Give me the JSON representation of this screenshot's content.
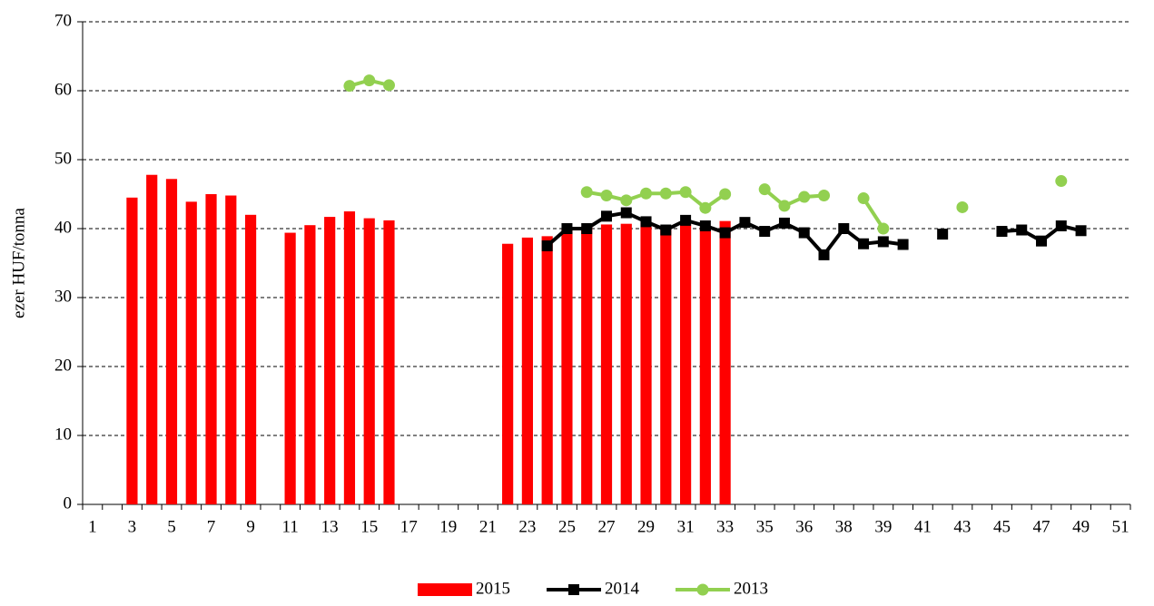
{
  "chart_data": {
    "type": "bar_line",
    "y_label": "ezer HUF/tonna",
    "categories": [
      "1",
      null,
      "3",
      null,
      "5",
      null,
      "7",
      null,
      "9",
      null,
      "11",
      null,
      "13",
      null,
      "15",
      null,
      "17",
      null,
      "19",
      null,
      "21",
      null,
      "23",
      null,
      "25",
      null,
      "27",
      null,
      "29",
      null,
      "31",
      null,
      "33",
      null,
      "35",
      null,
      "36",
      null,
      "38",
      null,
      "39",
      null,
      "41",
      null,
      "43",
      null,
      "45",
      null,
      "47",
      null,
      "49",
      null,
      "51"
    ],
    "series": [
      {
        "name": "2015",
        "type": "bar",
        "color": "#ff0000",
        "values": [
          null,
          null,
          44.5,
          47.8,
          47.2,
          43.9,
          45,
          44.8,
          42,
          null,
          39.4,
          40.5,
          41.7,
          42.5,
          41.5,
          41.2,
          null,
          null,
          null,
          null,
          null,
          37.8,
          38.7,
          38.9,
          40,
          40.3,
          40.6,
          40.7,
          41,
          40,
          40.8,
          40.2,
          41.1,
          null,
          null,
          null,
          null,
          null,
          null,
          null,
          null,
          null,
          null,
          null,
          null,
          null,
          null,
          null,
          null,
          null,
          null,
          null,
          null
        ]
      },
      {
        "name": "2014",
        "type": "line",
        "marker": "square",
        "color": "#000000",
        "values": [
          null,
          null,
          null,
          null,
          null,
          null,
          null,
          null,
          null,
          null,
          null,
          null,
          null,
          null,
          null,
          null,
          null,
          null,
          null,
          null,
          null,
          null,
          null,
          37.5,
          40,
          40,
          41.8,
          42.3,
          41,
          39.8,
          41.2,
          40.4,
          39.4,
          40.9,
          39.6,
          40.8,
          39.4,
          36.2,
          40,
          37.8,
          38.1,
          37.7,
          null,
          39.2,
          null,
          null,
          39.6,
          39.8,
          38.2,
          40.4,
          39.7,
          null,
          null
        ]
      },
      {
        "name": "2013",
        "type": "line",
        "marker": "circle",
        "color": "#92d050",
        "values": [
          null,
          null,
          null,
          null,
          null,
          null,
          null,
          null,
          null,
          null,
          null,
          null,
          null,
          60.7,
          61.5,
          60.8,
          null,
          null,
          null,
          null,
          null,
          null,
          null,
          null,
          null,
          45.3,
          44.8,
          44.1,
          45.1,
          45.1,
          45.3,
          43,
          45,
          null,
          45.7,
          43.3,
          44.6,
          44.8,
          null,
          44.4,
          40,
          null,
          null,
          null,
          43.1,
          null,
          null,
          null,
          null,
          46.9,
          null,
          null,
          null
        ]
      }
    ],
    "ylim": [
      0,
      70
    ],
    "yticks": [
      0,
      10,
      20,
      30,
      40,
      50,
      60,
      70
    ],
    "grid": true,
    "legend": "bottom"
  }
}
